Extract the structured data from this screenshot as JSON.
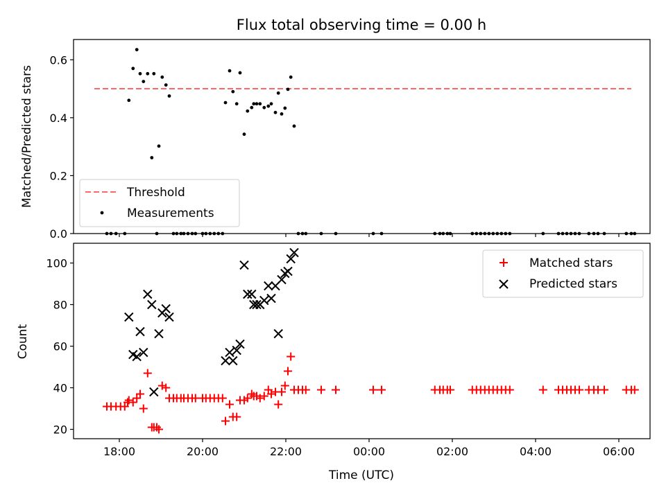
{
  "chart_data": [
    {
      "type": "scatter",
      "title": "Flux total observing time = 0.00 h",
      "ylabel": "Matched/Predicted stars",
      "xlabel": "",
      "xlim": [
        -1.1,
        12.75
      ],
      "ylim": [
        0,
        0.67
      ],
      "yticks": [
        0.0,
        0.2,
        0.4,
        0.6
      ],
      "ytick_labels": [
        "0.0",
        "0.2",
        "0.4",
        "0.6"
      ],
      "grid": false,
      "legend_position": "lower-left",
      "legend": [
        "Threshold",
        "Measurements"
      ],
      "threshold": {
        "name": "Threshold",
        "value": 0.5,
        "x_range": [
          -0.6,
          12.3
        ],
        "color": "#ff6666",
        "style": "dashed"
      },
      "series": [
        {
          "name": "Measurements",
          "color": "#000000",
          "marker": "dot",
          "points": [
            [
              -0.3,
              0
            ],
            [
              -0.2,
              0
            ],
            [
              -0.08,
              0
            ],
            [
              0.13,
              0
            ],
            [
              0.23,
              0.46
            ],
            [
              0.33,
              0.57
            ],
            [
              0.42,
              0.635
            ],
            [
              0.5,
              0.552
            ],
            [
              0.58,
              0.525
            ],
            [
              0.68,
              0.552
            ],
            [
              0.78,
              0.262
            ],
            [
              0.83,
              0.552
            ],
            [
              0.9,
              0
            ],
            [
              0.95,
              0.302
            ],
            [
              1.03,
              0.54
            ],
            [
              1.12,
              0.513
            ],
            [
              1.2,
              0.475
            ],
            [
              1.3,
              0
            ],
            [
              1.38,
              0
            ],
            [
              1.48,
              0
            ],
            [
              1.55,
              0
            ],
            [
              1.65,
              0
            ],
            [
              1.75,
              0
            ],
            [
              1.83,
              0
            ],
            [
              2.0,
              0
            ],
            [
              2.08,
              0
            ],
            [
              2.18,
              0
            ],
            [
              2.28,
              0
            ],
            [
              2.38,
              0
            ],
            [
              2.48,
              0
            ],
            [
              2.55,
              0.452
            ],
            [
              2.65,
              0.562
            ],
            [
              2.73,
              0.49
            ],
            [
              2.82,
              0.448
            ],
            [
              2.9,
              0.555
            ],
            [
              3.0,
              0.343
            ],
            [
              3.08,
              0.423
            ],
            [
              3.18,
              0.435
            ],
            [
              3.23,
              0.448
            ],
            [
              3.3,
              0.448
            ],
            [
              3.38,
              0.448
            ],
            [
              3.48,
              0.435
            ],
            [
              3.58,
              0.44
            ],
            [
              3.65,
              0.448
            ],
            [
              3.75,
              0.418
            ],
            [
              3.82,
              0.485
            ],
            [
              3.9,
              0.413
            ],
            [
              3.98,
              0.433
            ],
            [
              4.05,
              0.498
            ],
            [
              4.12,
              0.54
            ],
            [
              4.2,
              0.371
            ],
            [
              4.3,
              0
            ],
            [
              4.4,
              0
            ],
            [
              4.48,
              0
            ],
            [
              4.85,
              0
            ],
            [
              5.2,
              0
            ],
            [
              6.1,
              0
            ],
            [
              6.3,
              0
            ],
            [
              7.58,
              0
            ],
            [
              7.7,
              0
            ],
            [
              7.78,
              0
            ],
            [
              7.88,
              0
            ],
            [
              7.95,
              0
            ],
            [
              8.48,
              0
            ],
            [
              8.58,
              0
            ],
            [
              8.68,
              0
            ],
            [
              8.78,
              0
            ],
            [
              8.88,
              0
            ],
            [
              8.98,
              0
            ],
            [
              9.08,
              0
            ],
            [
              9.18,
              0
            ],
            [
              9.28,
              0
            ],
            [
              9.38,
              0
            ],
            [
              10.18,
              0
            ],
            [
              10.55,
              0
            ],
            [
              10.65,
              0
            ],
            [
              10.75,
              0
            ],
            [
              10.85,
              0
            ],
            [
              10.95,
              0
            ],
            [
              11.05,
              0
            ],
            [
              11.28,
              0
            ],
            [
              11.4,
              0
            ],
            [
              11.5,
              0
            ],
            [
              11.65,
              0
            ],
            [
              12.18,
              0
            ],
            [
              12.3,
              0
            ],
            [
              12.38,
              0
            ]
          ]
        }
      ]
    },
    {
      "type": "scatter",
      "title": "",
      "ylabel": "Count",
      "xlabel": "Time (UTC)",
      "xlim": [
        -1.1,
        12.75
      ],
      "ylim": [
        15.5,
        109.5
      ],
      "yticks": [
        20,
        40,
        60,
        80,
        100
      ],
      "ytick_labels": [
        "20",
        "40",
        "60",
        "80",
        "100"
      ],
      "xticks": [
        0,
        2,
        4,
        6,
        8,
        10,
        12
      ],
      "xtick_labels": [
        "18:00",
        "20:00",
        "22:00",
        "00:00",
        "02:00",
        "04:00",
        "06:00"
      ],
      "grid": false,
      "legend_position": "top-right",
      "legend": [
        "Matched stars",
        "Predicted stars"
      ],
      "series": [
        {
          "name": "Matched stars",
          "color": "#ff0000",
          "marker": "plus",
          "points": [
            [
              -0.3,
              31
            ],
            [
              -0.2,
              31
            ],
            [
              -0.08,
              31
            ],
            [
              0.03,
              31
            ],
            [
              0.13,
              31
            ],
            [
              0.2,
              33
            ],
            [
              0.23,
              34
            ],
            [
              0.33,
              33
            ],
            [
              0.42,
              35
            ],
            [
              0.5,
              37
            ],
            [
              0.58,
              30
            ],
            [
              0.68,
              47
            ],
            [
              0.78,
              21
            ],
            [
              0.83,
              21
            ],
            [
              0.9,
              21
            ],
            [
              0.95,
              20
            ],
            [
              1.03,
              41
            ],
            [
              1.12,
              40
            ],
            [
              1.2,
              35
            ],
            [
              1.3,
              35
            ],
            [
              1.38,
              35
            ],
            [
              1.48,
              35
            ],
            [
              1.55,
              35
            ],
            [
              1.65,
              35
            ],
            [
              1.75,
              35
            ],
            [
              1.83,
              35
            ],
            [
              2.0,
              35
            ],
            [
              2.08,
              35
            ],
            [
              2.18,
              35
            ],
            [
              2.28,
              35
            ],
            [
              2.38,
              35
            ],
            [
              2.48,
              35
            ],
            [
              2.55,
              24
            ],
            [
              2.65,
              32
            ],
            [
              2.73,
              26
            ],
            [
              2.82,
              26
            ],
            [
              2.9,
              34
            ],
            [
              3.0,
              34
            ],
            [
              3.08,
              35
            ],
            [
              3.18,
              37
            ],
            [
              3.23,
              36
            ],
            [
              3.3,
              36
            ],
            [
              3.38,
              35
            ],
            [
              3.48,
              36
            ],
            [
              3.58,
              39
            ],
            [
              3.65,
              37
            ],
            [
              3.75,
              38
            ],
            [
              3.82,
              32
            ],
            [
              3.9,
              38
            ],
            [
              3.98,
              41
            ],
            [
              4.05,
              48
            ],
            [
              4.12,
              55
            ],
            [
              4.2,
              39
            ],
            [
              4.3,
              39
            ],
            [
              4.4,
              39
            ],
            [
              4.48,
              39
            ],
            [
              4.85,
              39
            ],
            [
              5.2,
              39
            ],
            [
              6.1,
              39
            ],
            [
              6.3,
              39
            ],
            [
              7.58,
              39
            ],
            [
              7.7,
              39
            ],
            [
              7.78,
              39
            ],
            [
              7.88,
              39
            ],
            [
              7.95,
              39
            ],
            [
              8.48,
              39
            ],
            [
              8.58,
              39
            ],
            [
              8.68,
              39
            ],
            [
              8.78,
              39
            ],
            [
              8.88,
              39
            ],
            [
              8.98,
              39
            ],
            [
              9.08,
              39
            ],
            [
              9.18,
              39
            ],
            [
              9.28,
              39
            ],
            [
              9.38,
              39
            ],
            [
              10.18,
              39
            ],
            [
              10.55,
              39
            ],
            [
              10.65,
              39
            ],
            [
              10.75,
              39
            ],
            [
              10.85,
              39
            ],
            [
              10.95,
              39
            ],
            [
              11.05,
              39
            ],
            [
              11.28,
              39
            ],
            [
              11.4,
              39
            ],
            [
              11.5,
              39
            ],
            [
              11.65,
              39
            ],
            [
              12.18,
              39
            ],
            [
              12.3,
              39
            ],
            [
              12.38,
              39
            ]
          ]
        },
        {
          "name": "Predicted stars",
          "color": "#000000",
          "marker": "x",
          "points": [
            [
              0.23,
              74
            ],
            [
              0.33,
              56
            ],
            [
              0.42,
              55
            ],
            [
              0.5,
              67
            ],
            [
              0.58,
              57
            ],
            [
              0.68,
              85
            ],
            [
              0.78,
              80
            ],
            [
              0.83,
              38
            ],
            [
              0.95,
              66
            ],
            [
              1.03,
              76
            ],
            [
              1.12,
              78
            ],
            [
              1.2,
              74
            ],
            [
              2.55,
              53
            ],
            [
              2.65,
              57
            ],
            [
              2.73,
              53
            ],
            [
              2.82,
              58
            ],
            [
              2.9,
              61
            ],
            [
              3.0,
              99
            ],
            [
              3.08,
              85
            ],
            [
              3.18,
              85
            ],
            [
              3.23,
              80
            ],
            [
              3.3,
              80
            ],
            [
              3.38,
              80
            ],
            [
              3.48,
              82
            ],
            [
              3.58,
              89
            ],
            [
              3.65,
              83
            ],
            [
              3.75,
              89
            ],
            [
              3.82,
              66
            ],
            [
              3.9,
              92
            ],
            [
              3.98,
              95
            ],
            [
              4.05,
              96
            ],
            [
              4.12,
              102
            ],
            [
              4.2,
              105
            ]
          ]
        }
      ]
    }
  ]
}
